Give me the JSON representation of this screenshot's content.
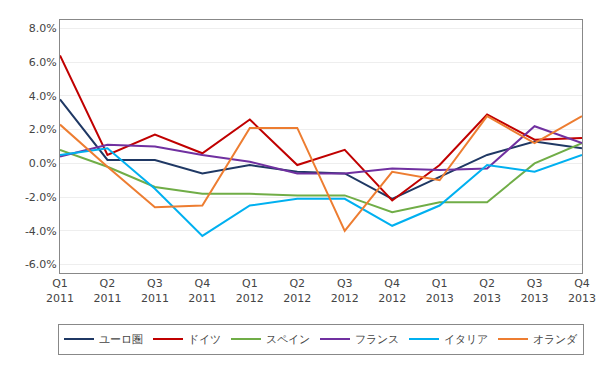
{
  "chart_data": {
    "type": "line",
    "categories": [
      "Q1\n2011",
      "Q2\n2011",
      "Q3\n2011",
      "Q4\n2011",
      "Q1\n2012",
      "Q2\n2012",
      "Q3\n2012",
      "Q4\n2012",
      "Q1\n2013",
      "Q2\n2013",
      "Q3\n2013",
      "Q4\n2013"
    ],
    "series": [
      {
        "name": "ユーロ圏",
        "color": "#1f3864",
        "values": [
          3.8,
          0.2,
          0.2,
          -0.6,
          -0.1,
          -0.5,
          -0.6,
          -2.1,
          -0.8,
          0.5,
          1.3,
          0.9
        ]
      },
      {
        "name": "ドイツ",
        "color": "#c00000",
        "values": [
          6.4,
          0.5,
          1.7,
          0.6,
          2.6,
          -0.1,
          0.8,
          -2.2,
          -0.1,
          2.9,
          1.4,
          1.5
        ]
      },
      {
        "name": "スペイン",
        "color": "#70ad47",
        "values": [
          0.8,
          -0.2,
          -1.4,
          -1.8,
          -1.8,
          -1.9,
          -1.9,
          -2.9,
          -2.3,
          -2.3,
          0.0,
          1.2
        ]
      },
      {
        "name": "フランス",
        "color": "#7030a0",
        "values": [
          0.4,
          1.1,
          1.0,
          0.5,
          0.1,
          -0.6,
          -0.6,
          -0.3,
          -0.4,
          -0.3,
          2.2,
          1.2
        ]
      },
      {
        "name": "イタリア",
        "color": "#00b0f0",
        "values": [
          0.5,
          0.9,
          -1.5,
          -4.3,
          -2.5,
          -2.1,
          -2.1,
          -3.7,
          -2.5,
          -0.1,
          -0.5,
          0.5
        ]
      },
      {
        "name": "オランダ",
        "color": "#ed7d31",
        "values": [
          2.3,
          -0.2,
          -2.6,
          -2.5,
          2.1,
          2.1,
          -4.0,
          -0.5,
          -1.0,
          2.8,
          1.2,
          2.8
        ]
      }
    ],
    "ylim": [
      -6.5,
      8.5
    ],
    "yticks": [
      {
        "value": -6.0,
        "label": "-6.0%"
      },
      {
        "value": -4.0,
        "label": "-4.0%"
      },
      {
        "value": -2.0,
        "label": "-2.0%"
      },
      {
        "value": 0.0,
        "label": "0.0%"
      },
      {
        "value": 2.0,
        "label": "2.0%"
      },
      {
        "value": 4.0,
        "label": "4.0%"
      },
      {
        "value": 6.0,
        "label": "6.0%"
      },
      {
        "value": 8.0,
        "label": "8.0%"
      }
    ],
    "grid": true,
    "legend": "bottom"
  }
}
